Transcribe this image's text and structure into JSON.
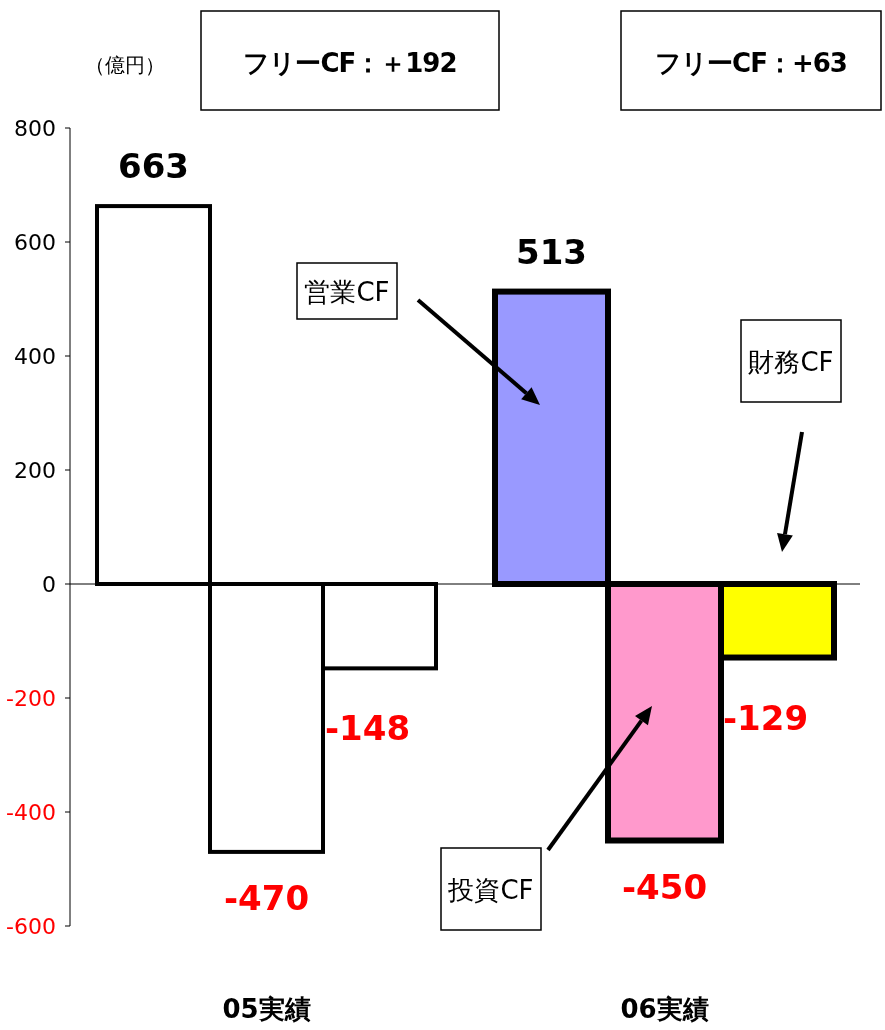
{
  "chart_data": {
    "type": "bar",
    "categories": [
      "05実績",
      "06実績"
    ],
    "series": [
      {
        "name": "営業CF",
        "colors": [
          "#ffffff",
          "#9999ff"
        ],
        "values": [
          663,
          513
        ]
      },
      {
        "name": "投資CF",
        "colors": [
          "#ffffff",
          "#ff99cc"
        ],
        "values": [
          -470,
          -450
        ]
      },
      {
        "name": "財務CF",
        "colors": [
          "#ffffff",
          "#ffff00"
        ],
        "values": [
          -148,
          -129
        ]
      }
    ],
    "ylabel": "（億円）",
    "annotations": [
      "フリーCF：＋192",
      "フリーCF：+63"
    ],
    "ylim": [
      -600,
      800
    ],
    "yticks": [
      -600,
      -400,
      -200,
      0,
      200,
      400,
      600,
      800
    ],
    "data_labels": true
  }
}
